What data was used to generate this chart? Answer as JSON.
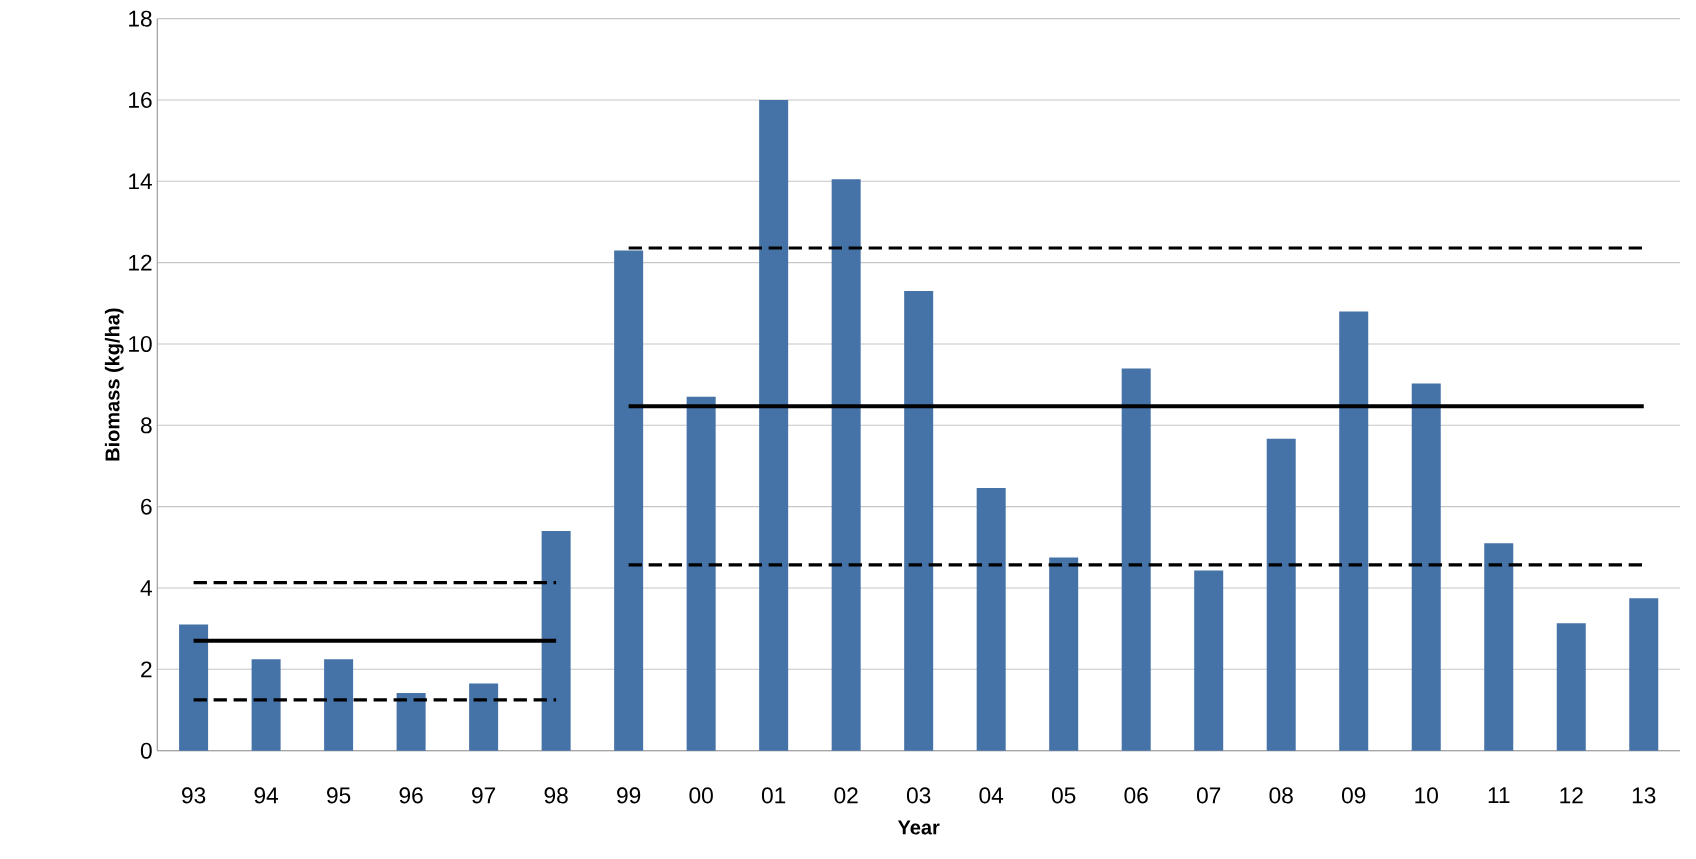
{
  "chart_data": {
    "type": "bar",
    "xlabel": "Year",
    "ylabel": "Biomass (kg/ha)",
    "categories": [
      "93",
      "94",
      "95",
      "96",
      "97",
      "98",
      "99",
      "00",
      "01",
      "02",
      "03",
      "04",
      "05",
      "06",
      "07",
      "08",
      "09",
      "10",
      "11",
      "12",
      "13"
    ],
    "series": [
      {
        "color": "#4572a7",
        "values": [
          3.1,
          2.25,
          2.25,
          1.42,
          1.65,
          5.4,
          12.3,
          8.7,
          16.0,
          14.05,
          11.3,
          6.46,
          4.75,
          9.4,
          4.43,
          7.67,
          10.8,
          9.03,
          5.1,
          3.13,
          3.75
        ]
      },
      {
        "type": "line",
        "color": "#000000",
        "line_style": "dashed",
        "x": [
          "93",
          "98"
        ],
        "values": [
          4.13,
          4.13
        ]
      },
      {
        "type": "line",
        "color": "#000000",
        "line_style": "solid",
        "x": [
          "93",
          "98"
        ],
        "values": [
          2.7,
          2.7
        ]
      },
      {
        "type": "line",
        "color": "#000000",
        "line_style": "dashed",
        "x": [
          "93",
          "98"
        ],
        "values": [
          1.25,
          1.25
        ]
      },
      {
        "type": "line",
        "color": "#000000",
        "line_style": "dashed",
        "x": [
          "99",
          "13"
        ],
        "values": [
          12.36,
          12.36
        ]
      },
      {
        "type": "line",
        "color": "#000000",
        "line_style": "solid",
        "x": [
          "99",
          "13"
        ],
        "values": [
          8.47,
          8.47
        ]
      },
      {
        "type": "line",
        "color": "#000000",
        "line_style": "dashed",
        "x": [
          "99",
          "13"
        ],
        "values": [
          4.57,
          4.57
        ]
      }
    ],
    "ylim": [
      0,
      18
    ],
    "yticks": [
      0,
      2,
      4,
      6,
      8,
      10,
      12,
      14,
      16,
      18
    ],
    "grid": "y",
    "marker": "none"
  }
}
